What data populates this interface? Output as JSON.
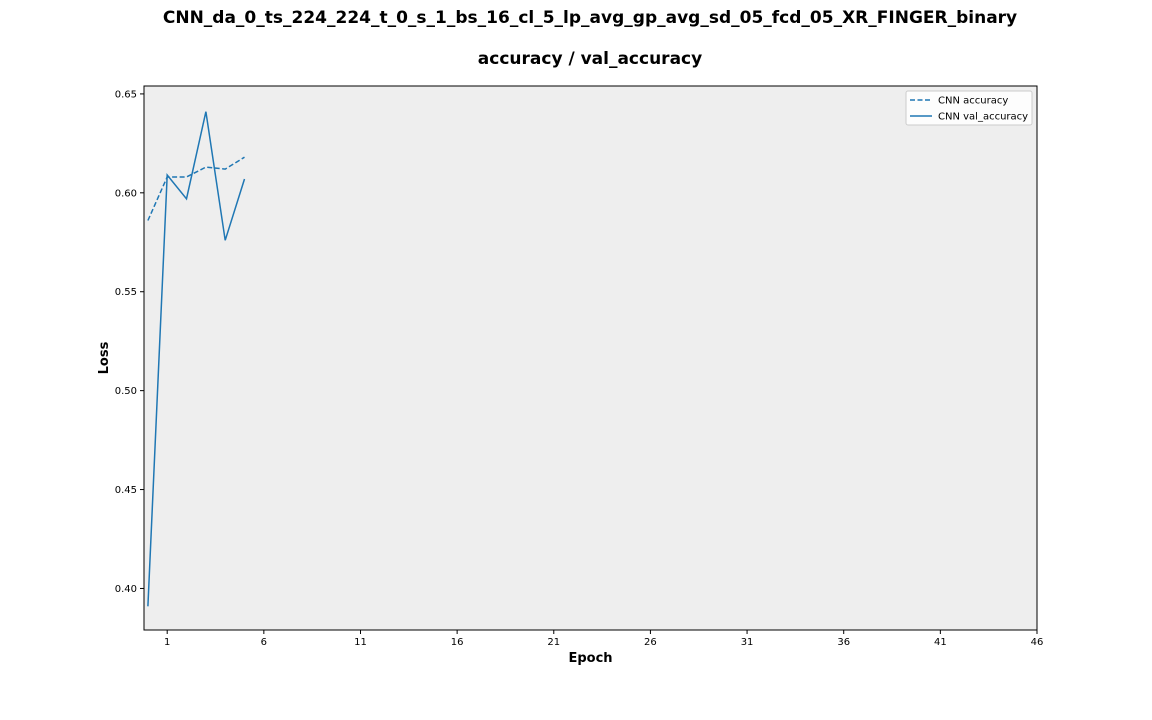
{
  "chart_data": {
    "type": "line",
    "title": "CNN_da_0_ts_224_224_t_0_s_1_bs_16_cl_5_lp_avg_gp_avg_sd_05_fcd_05_XR_FINGER_binary",
    "subtitle": "accuracy / val_accuracy",
    "xlabel": "Epoch",
    "ylabel": "Loss",
    "xlim": [
      -0.2,
      46
    ],
    "ylim": [
      0.379,
      0.654
    ],
    "xticks": [
      1,
      6,
      11,
      16,
      21,
      26,
      31,
      36,
      41,
      46
    ],
    "yticks": [
      0.4,
      0.45,
      0.5,
      0.55,
      0.6,
      0.65
    ],
    "x": [
      0,
      1,
      2,
      3,
      4,
      5
    ],
    "series": [
      {
        "name": "CNN accuracy",
        "style": "dashed",
        "color": "#1f77b4",
        "values": [
          0.586,
          0.608,
          0.608,
          0.613,
          0.612,
          0.618
        ]
      },
      {
        "name": "CNN val_accuracy",
        "style": "solid",
        "color": "#1f77b4",
        "values": [
          0.391,
          0.609,
          0.597,
          0.641,
          0.576,
          0.607
        ]
      }
    ],
    "grid": false,
    "legend": "top-right",
    "background": "#eeeeee"
  }
}
